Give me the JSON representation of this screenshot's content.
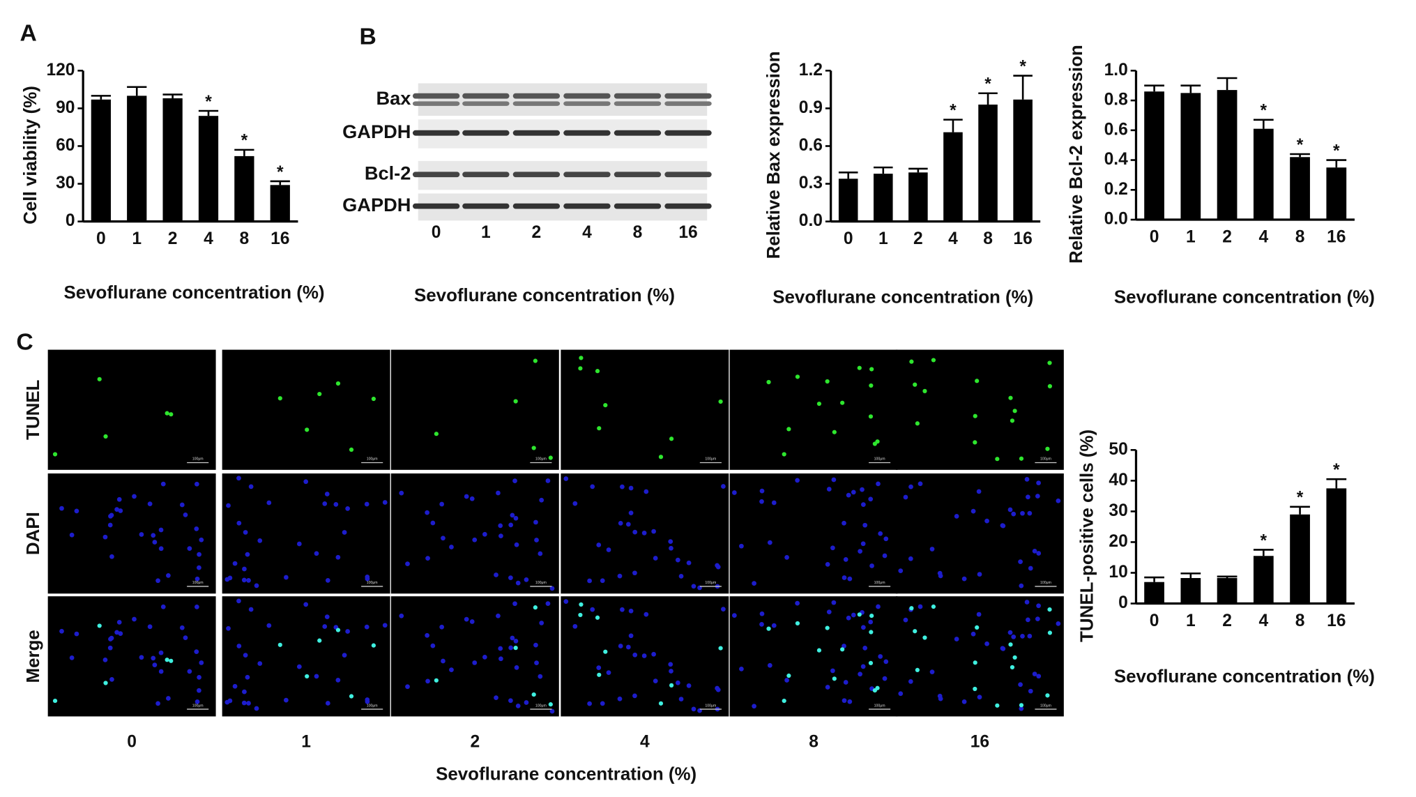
{
  "panel_labels": [
    "A",
    "B",
    "C"
  ],
  "blot": {
    "rows": [
      "Bax",
      "GAPDH",
      "Bcl-2",
      "GAPDH"
    ],
    "lanes": [
      "0",
      "1",
      "2",
      "4",
      "8",
      "16"
    ],
    "x_label": "Sevoflurane concentration (%)"
  },
  "micrographs": {
    "rows": [
      "TUNEL",
      "DAPI",
      "Merge"
    ],
    "columns": [
      "0",
      "1",
      "2",
      "4",
      "8",
      "16"
    ],
    "scale_bar": "100μm",
    "x_label": "Sevoflurane concentration (%)"
  },
  "chart_data": [
    {
      "type": "bar",
      "y_label": "Cell viability (%)",
      "x_label": "Sevoflurane concentration (%)",
      "categories": [
        "0",
        "1",
        "2",
        "4",
        "8",
        "16"
      ],
      "values": [
        97,
        100,
        98,
        84,
        52,
        29
      ],
      "errors": [
        3,
        7,
        3,
        4,
        5,
        3
      ],
      "annotations": [
        null,
        null,
        null,
        "*",
        "*",
        "*"
      ],
      "color": "#000000",
      "ylim": [
        0,
        120
      ],
      "yticks": [
        0,
        30,
        60,
        90,
        120
      ]
    },
    {
      "type": "bar",
      "y_label": "Relative Bax expression",
      "x_label": "Sevoflurane concentration (%)",
      "categories": [
        "0",
        "1",
        "2",
        "4",
        "8",
        "16"
      ],
      "values": [
        0.34,
        0.38,
        0.39,
        0.71,
        0.93,
        0.97
      ],
      "errors": [
        0.05,
        0.05,
        0.03,
        0.1,
        0.09,
        0.19
      ],
      "annotations": [
        null,
        null,
        null,
        "*",
        "*",
        "*"
      ],
      "color": "#000000",
      "ylim": [
        0,
        1.2
      ],
      "yticks": [
        {
          "value": 0,
          "label": "0.0"
        },
        0.3,
        0.6,
        0.9,
        1.2
      ]
    },
    {
      "type": "bar",
      "y_label": "Relative Bcl-2 expression",
      "x_label": "Sevoflurane concentration (%)",
      "categories": [
        "0",
        "1",
        "2",
        "4",
        "8",
        "16"
      ],
      "values": [
        0.86,
        0.85,
        0.87,
        0.61,
        0.42,
        0.35
      ],
      "errors": [
        0.04,
        0.05,
        0.08,
        0.06,
        0.02,
        0.05
      ],
      "annotations": [
        null,
        null,
        null,
        "*",
        "*",
        "*"
      ],
      "color": "#000000",
      "ylim": [
        0,
        1.0
      ],
      "yticks": [
        {
          "value": 0,
          "label": "0.0"
        },
        0.2,
        0.4,
        0.6,
        0.8,
        {
          "value": 1,
          "label": "1.0"
        }
      ]
    },
    {
      "type": "bar",
      "y_label": "TUNEL-positive cells (%)",
      "x_label": "Sevoflurane concentration (%)",
      "categories": [
        "0",
        "1",
        "2",
        "4",
        "8",
        "16"
      ],
      "values": [
        7,
        8.3,
        8.3,
        15.5,
        29,
        37.5
      ],
      "errors": [
        1.5,
        1.5,
        0.5,
        2,
        2.5,
        3
      ],
      "annotations": [
        null,
        null,
        null,
        "*",
        "*",
        "*"
      ],
      "color": "#000000",
      "ylim": [
        0,
        50
      ],
      "yticks": [
        0,
        10,
        20,
        30,
        40,
        50
      ]
    }
  ]
}
